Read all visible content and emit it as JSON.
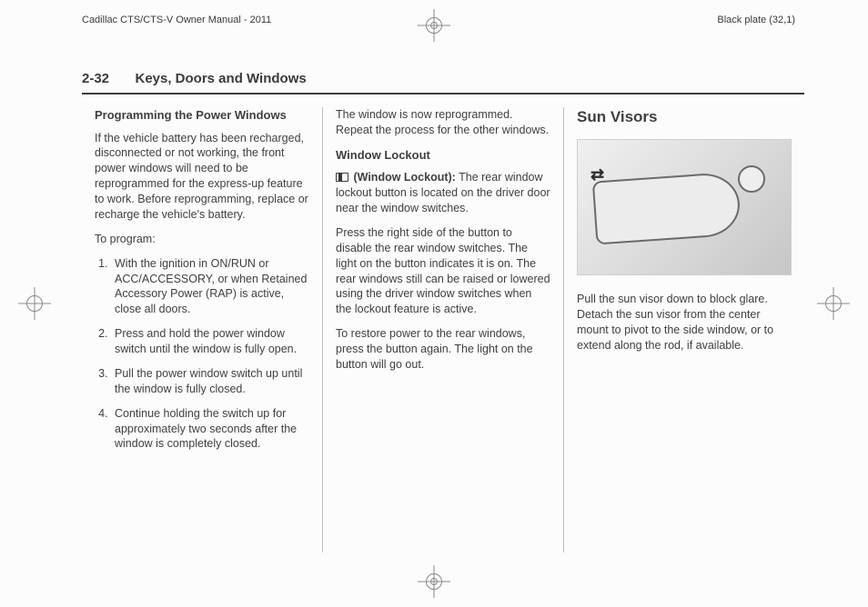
{
  "header": {
    "manual_title": "Cadillac CTS/CTS-V Owner Manual - 2011",
    "plate_label": "Black plate (32,1)"
  },
  "section": {
    "page_number": "2-32",
    "title": "Keys, Doors and Windows"
  },
  "col1": {
    "h3": "Programming the Power Windows",
    "intro": "If the vehicle battery has been recharged, disconnected or not working, the front power windows will need to be reprogrammed for the express-up feature to work. Before reprogramming, replace or recharge the vehicle's battery.",
    "to_program": "To program:",
    "steps": [
      "With the ignition in ON/RUN or ACC/ACCESSORY, or when Retained Accessory Power (RAP) is active, close all doors.",
      "Press and hold the power window switch until the window is fully open.",
      "Pull the power window switch up until the window is fully closed.",
      "Continue holding the switch up for approximately two seconds after the window is completely closed."
    ]
  },
  "col2": {
    "reprogrammed": "The window is now reprogrammed. Repeat the process for the other windows.",
    "h3": "Window Lockout",
    "lockout_label": "(Window Lockout):",
    "lockout_desc": "The rear window lockout button is located on the driver door near the window switches.",
    "disable": "Press the right side of the button to disable the rear window switches. The light on the button indicates it is on. The rear windows still can be raised or lowered using the driver window switches when the lockout feature is active.",
    "restore": "To restore power to the rear windows, press the button again. The light on the button will go out."
  },
  "col3": {
    "h2": "Sun Visors",
    "desc": "Pull the sun visor down to block glare. Detach the sun visor from the center mount to pivot to the side window, or to extend along the rod, if available."
  }
}
